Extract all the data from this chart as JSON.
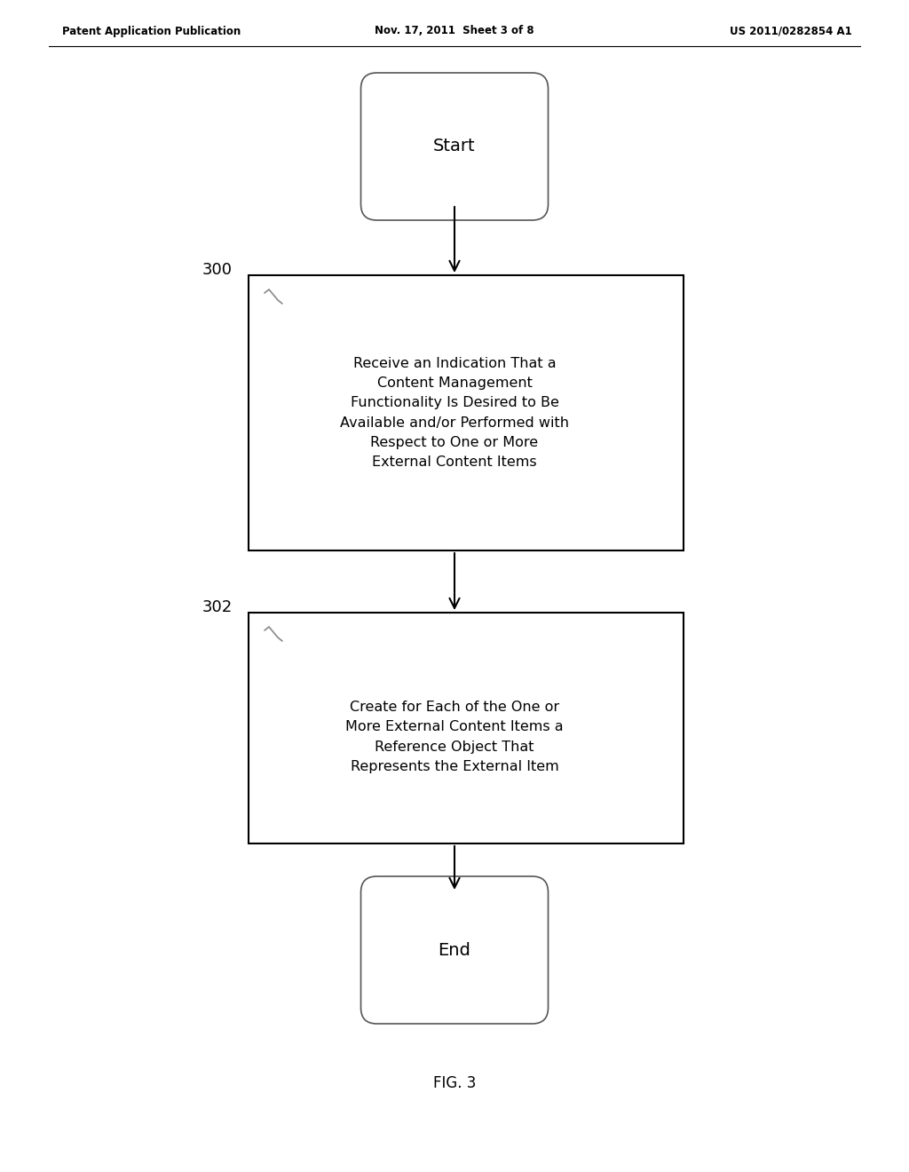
{
  "background_color": "#ffffff",
  "header_left": "Patent Application Publication",
  "header_center": "Nov. 17, 2011  Sheet 3 of 8",
  "header_right": "US 2011/0282854 A1",
  "header_fontsize": 8.5,
  "footer_label": "FIG. 3",
  "footer_fontsize": 12,
  "start_text": "Start",
  "end_text": "End",
  "box1_label": "300",
  "box2_label": "302",
  "box1_text": "Receive an Indication That a\nContent Management\nFunctionality Is Desired to Be\nAvailable and/or Performed with\nRespect to One or More\nExternal Content Items",
  "box2_text": "Create for Each of the One or\nMore External Content Items a\nReference Object That\nRepresents the External Item",
  "text_fontsize": 11.5,
  "label_fontsize": 13,
  "terminal_fontsize": 14
}
